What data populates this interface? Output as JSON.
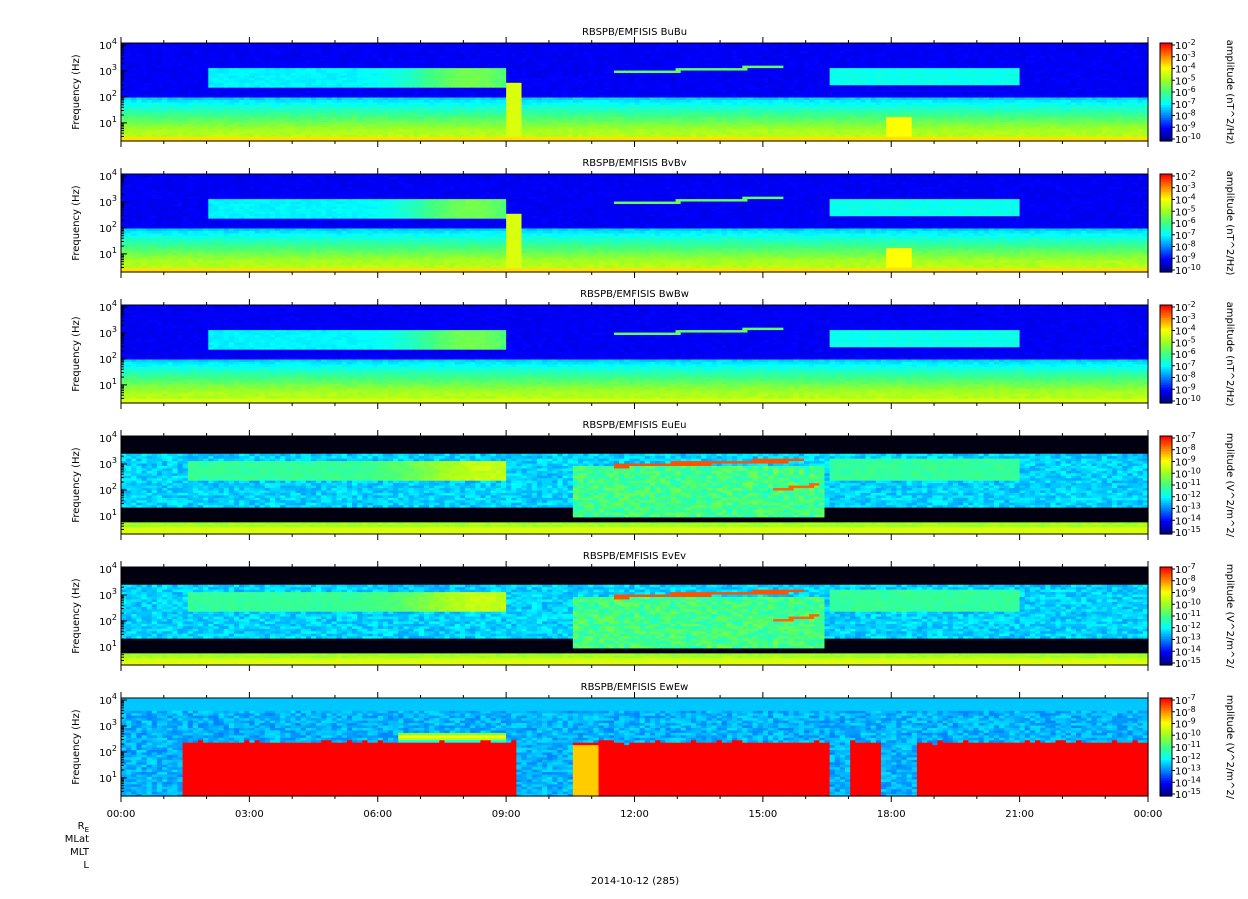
{
  "chart_data": {
    "type": "heatmap",
    "date_label": "2014-10-12 (285)",
    "x_tick_labels": [
      "00:00",
      "03:00",
      "06:00",
      "09:00",
      "12:00",
      "15:00",
      "18:00",
      "21:00",
      "00:00"
    ],
    "xlim_hours": [
      0,
      24
    ],
    "ephemeris_labels": [
      "R",
      "MLat",
      "MLT",
      "L"
    ],
    "ephemeris_subscript": "E",
    "panels": [
      {
        "title": "RBSPB/EMFISIS  BuBu",
        "ylabel": "Frequency (Hz)",
        "y_scale": "log",
        "ylim_hz": [
          2,
          12000
        ],
        "y_ticks": [
          {
            "base": "10",
            "exp": "1"
          },
          {
            "base": "10",
            "exp": "2"
          },
          {
            "base": "10",
            "exp": "3"
          },
          {
            "base": "10",
            "exp": "4"
          }
        ],
        "colorbar_label": "amplitude (nT^2/Hz)",
        "colorbar_ticks": [
          "-2",
          "-3",
          "-4",
          "-5",
          "-6",
          "-7",
          "-8",
          "-9",
          "-10"
        ],
        "kind": "B"
      },
      {
        "title": "RBSPB/EMFISIS  BvBv",
        "ylabel": "Frequency (Hz)",
        "y_scale": "log",
        "ylim_hz": [
          2,
          12000
        ],
        "y_ticks": [
          {
            "base": "10",
            "exp": "1"
          },
          {
            "base": "10",
            "exp": "2"
          },
          {
            "base": "10",
            "exp": "3"
          },
          {
            "base": "10",
            "exp": "4"
          }
        ],
        "colorbar_label": "amplitude (nT^2/Hz)",
        "colorbar_ticks": [
          "-2",
          "-3",
          "-4",
          "-5",
          "-6",
          "-7",
          "-8",
          "-9",
          "-10"
        ],
        "kind": "B"
      },
      {
        "title": "RBSPB/EMFISIS  BwBw",
        "ylabel": "Frequency (Hz)",
        "y_scale": "log",
        "ylim_hz": [
          2,
          12000
        ],
        "y_ticks": [
          {
            "base": "10",
            "exp": "1"
          },
          {
            "base": "10",
            "exp": "2"
          },
          {
            "base": "10",
            "exp": "3"
          },
          {
            "base": "10",
            "exp": "4"
          }
        ],
        "colorbar_label": "amplitude (nT^2/Hz)",
        "colorbar_ticks": [
          "-2",
          "-3",
          "-4",
          "-5",
          "-6",
          "-7",
          "-8",
          "-9",
          "-10"
        ],
        "kind": "Bw"
      },
      {
        "title": "RBSPB/EMFISIS  EuEu",
        "ylabel": "Frequency (Hz)",
        "y_scale": "log",
        "ylim_hz": [
          2,
          12000
        ],
        "y_ticks": [
          {
            "base": "10",
            "exp": "1"
          },
          {
            "base": "10",
            "exp": "2"
          },
          {
            "base": "10",
            "exp": "3"
          },
          {
            "base": "10",
            "exp": "4"
          }
        ],
        "colorbar_label": "mplitude (V^2/m^2/",
        "colorbar_ticks": [
          "-7",
          "-8",
          "-9",
          "-10",
          "-11",
          "-12",
          "-13",
          "-14",
          "-15"
        ],
        "kind": "E"
      },
      {
        "title": "RBSPB/EMFISIS  EvEv",
        "ylabel": "Frequency (Hz)",
        "y_scale": "log",
        "ylim_hz": [
          2,
          12000
        ],
        "y_ticks": [
          {
            "base": "10",
            "exp": "1"
          },
          {
            "base": "10",
            "exp": "2"
          },
          {
            "base": "10",
            "exp": "3"
          },
          {
            "base": "10",
            "exp": "4"
          }
        ],
        "colorbar_label": "mplitude (V^2/m^2/",
        "colorbar_ticks": [
          "-7",
          "-8",
          "-9",
          "-10",
          "-11",
          "-12",
          "-13",
          "-14",
          "-15"
        ],
        "kind": "E"
      },
      {
        "title": "RBSPB/EMFISIS  EwEw",
        "ylabel": "Frequency (Hz)",
        "y_scale": "log",
        "ylim_hz": [
          2,
          12000
        ],
        "y_ticks": [
          {
            "base": "10",
            "exp": "1"
          },
          {
            "base": "10",
            "exp": "2"
          },
          {
            "base": "10",
            "exp": "3"
          },
          {
            "base": "10",
            "exp": "4"
          }
        ],
        "colorbar_label": "mplitude (V^2/m^2/",
        "colorbar_ticks": [
          "-7",
          "-8",
          "-9",
          "-10",
          "-11",
          "-12",
          "-13",
          "-14",
          "-15"
        ],
        "kind": "Ew"
      }
    ],
    "colormap": [
      "#00007f",
      "#0000ff",
      "#0080ff",
      "#00ffff",
      "#40ff80",
      "#a0ff20",
      "#ffff00",
      "#ff8000",
      "#ff0000"
    ]
  }
}
